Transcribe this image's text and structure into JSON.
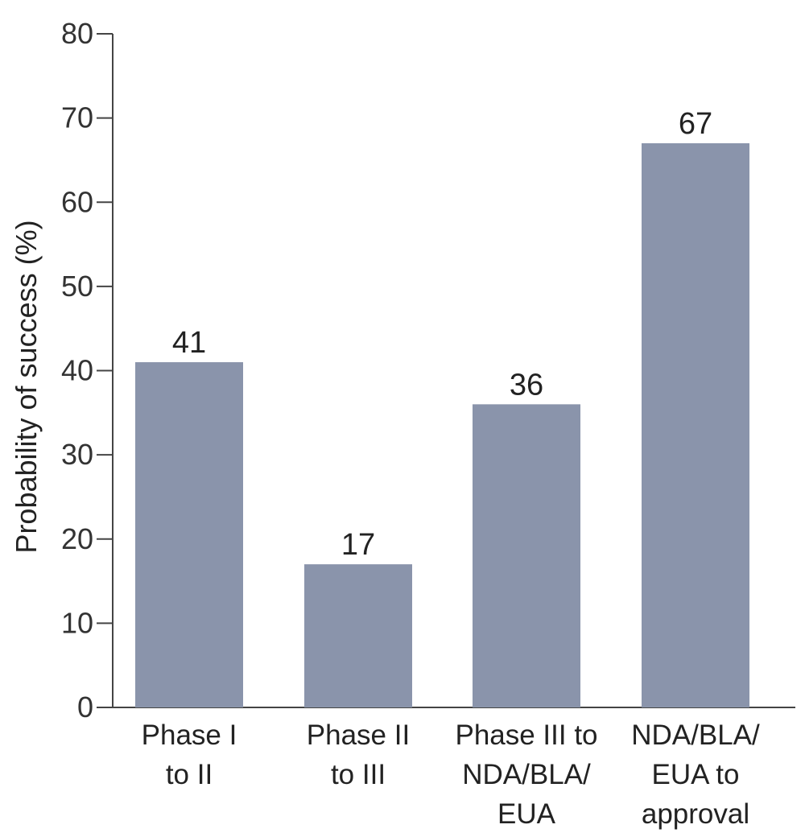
{
  "chart_data": {
    "type": "bar",
    "categories": [
      [
        "Phase I",
        "to II"
      ],
      [
        "Phase II",
        "to III"
      ],
      [
        "Phase III to",
        "NDA/BLA/",
        "EUA"
      ],
      [
        "NDA/BLA/",
        "EUA to",
        "approval"
      ]
    ],
    "values": [
      41,
      17,
      36,
      67
    ],
    "data_labels": [
      "41",
      "17",
      "36",
      "67"
    ],
    "ylabel": "Probability of success (%)",
    "ylim": [
      0,
      80
    ],
    "yticks": [
      0,
      10,
      20,
      30,
      40,
      50,
      60,
      70,
      80
    ],
    "grid": false,
    "bar_color": "#8a94ab"
  }
}
